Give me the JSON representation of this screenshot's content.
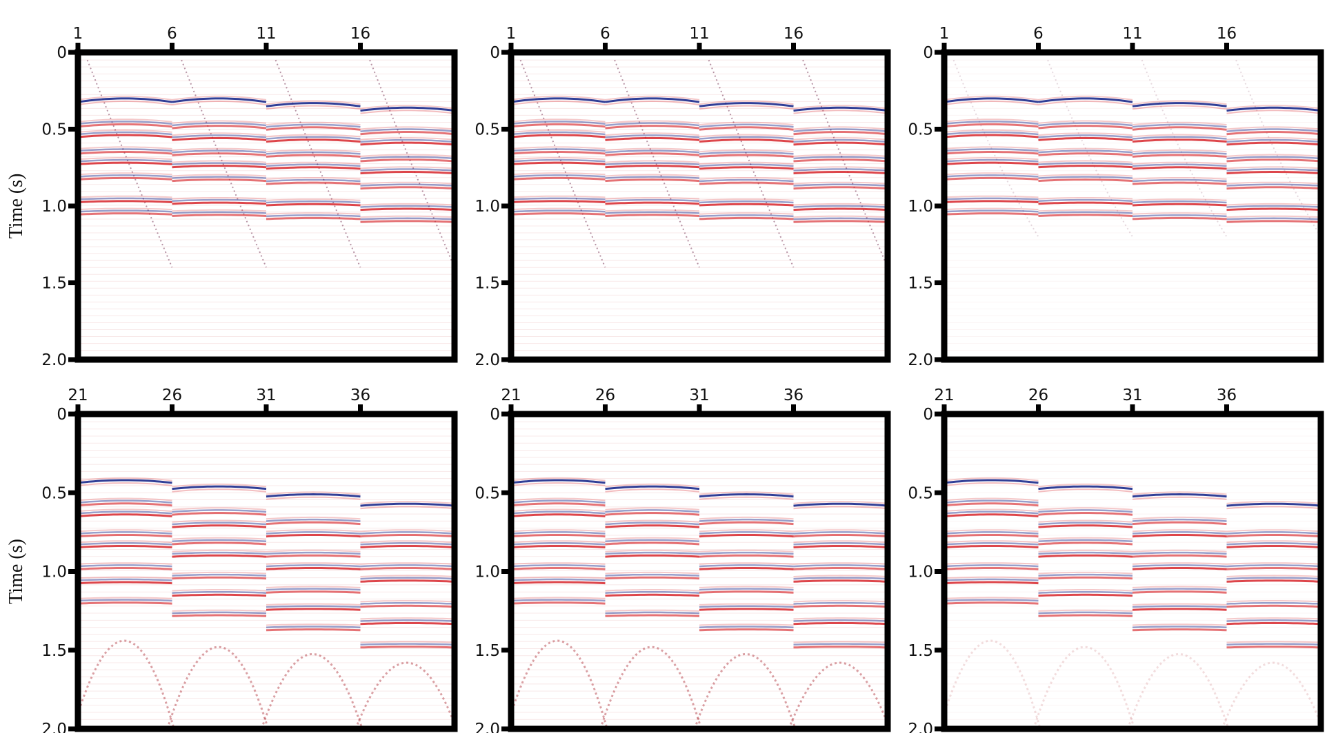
{
  "chart_data": {
    "type": "heatmap",
    "layout": "2 rows x 3 columns of seismic gathers",
    "ylabel": "Time (s)",
    "ylim": [
      0,
      2.0
    ],
    "y_ticks": [
      "0",
      "0.5",
      "1.0",
      "1.5",
      "2.0"
    ],
    "y_tick_values": [
      0,
      0.5,
      1.0,
      1.5,
      2.0
    ],
    "colors": {
      "positive": "#d7262b",
      "negative": "#1b2a8c",
      "background": "#ffffff",
      "frame": "#000000"
    },
    "rows": [
      {
        "x_ticks": [
          "1",
          "6",
          "11",
          "16"
        ],
        "x_tick_values": [
          1,
          6,
          11,
          16
        ],
        "trace_range": [
          1,
          20
        ],
        "segment_event_times": [
          [
            0.3,
            0.45,
            0.52,
            0.63,
            0.7,
            0.8,
            0.95,
            1.03
          ],
          [
            0.3,
            0.46,
            0.54,
            0.64,
            0.72,
            0.81,
            0.96,
            1.04
          ],
          [
            0.33,
            0.47,
            0.55,
            0.65,
            0.73,
            0.83,
            0.97,
            1.06
          ],
          [
            0.36,
            0.5,
            0.57,
            0.68,
            0.76,
            0.86,
            1.0,
            1.08
          ]
        ]
      },
      {
        "x_ticks": [
          "21",
          "26",
          "31",
          "36"
        ],
        "x_tick_values": [
          21,
          26,
          31,
          36
        ],
        "trace_range": [
          21,
          40
        ],
        "segment_event_times": [
          [
            0.42,
            0.55,
            0.62,
            0.75,
            0.82,
            0.96,
            1.05,
            1.18
          ],
          [
            0.46,
            0.61,
            0.69,
            0.8,
            0.88,
            1.02,
            1.13,
            1.26
          ],
          [
            0.51,
            0.67,
            0.75,
            0.88,
            0.96,
            1.11,
            1.22,
            1.35
          ],
          [
            0.57,
            0.75,
            0.82,
            0.96,
            1.04,
            1.2,
            1.31,
            1.46
          ]
        ]
      }
    ],
    "columns": [
      {
        "diffraction_noise": "strong"
      },
      {
        "diffraction_noise": "strong"
      },
      {
        "diffraction_noise": "weak"
      }
    ]
  }
}
